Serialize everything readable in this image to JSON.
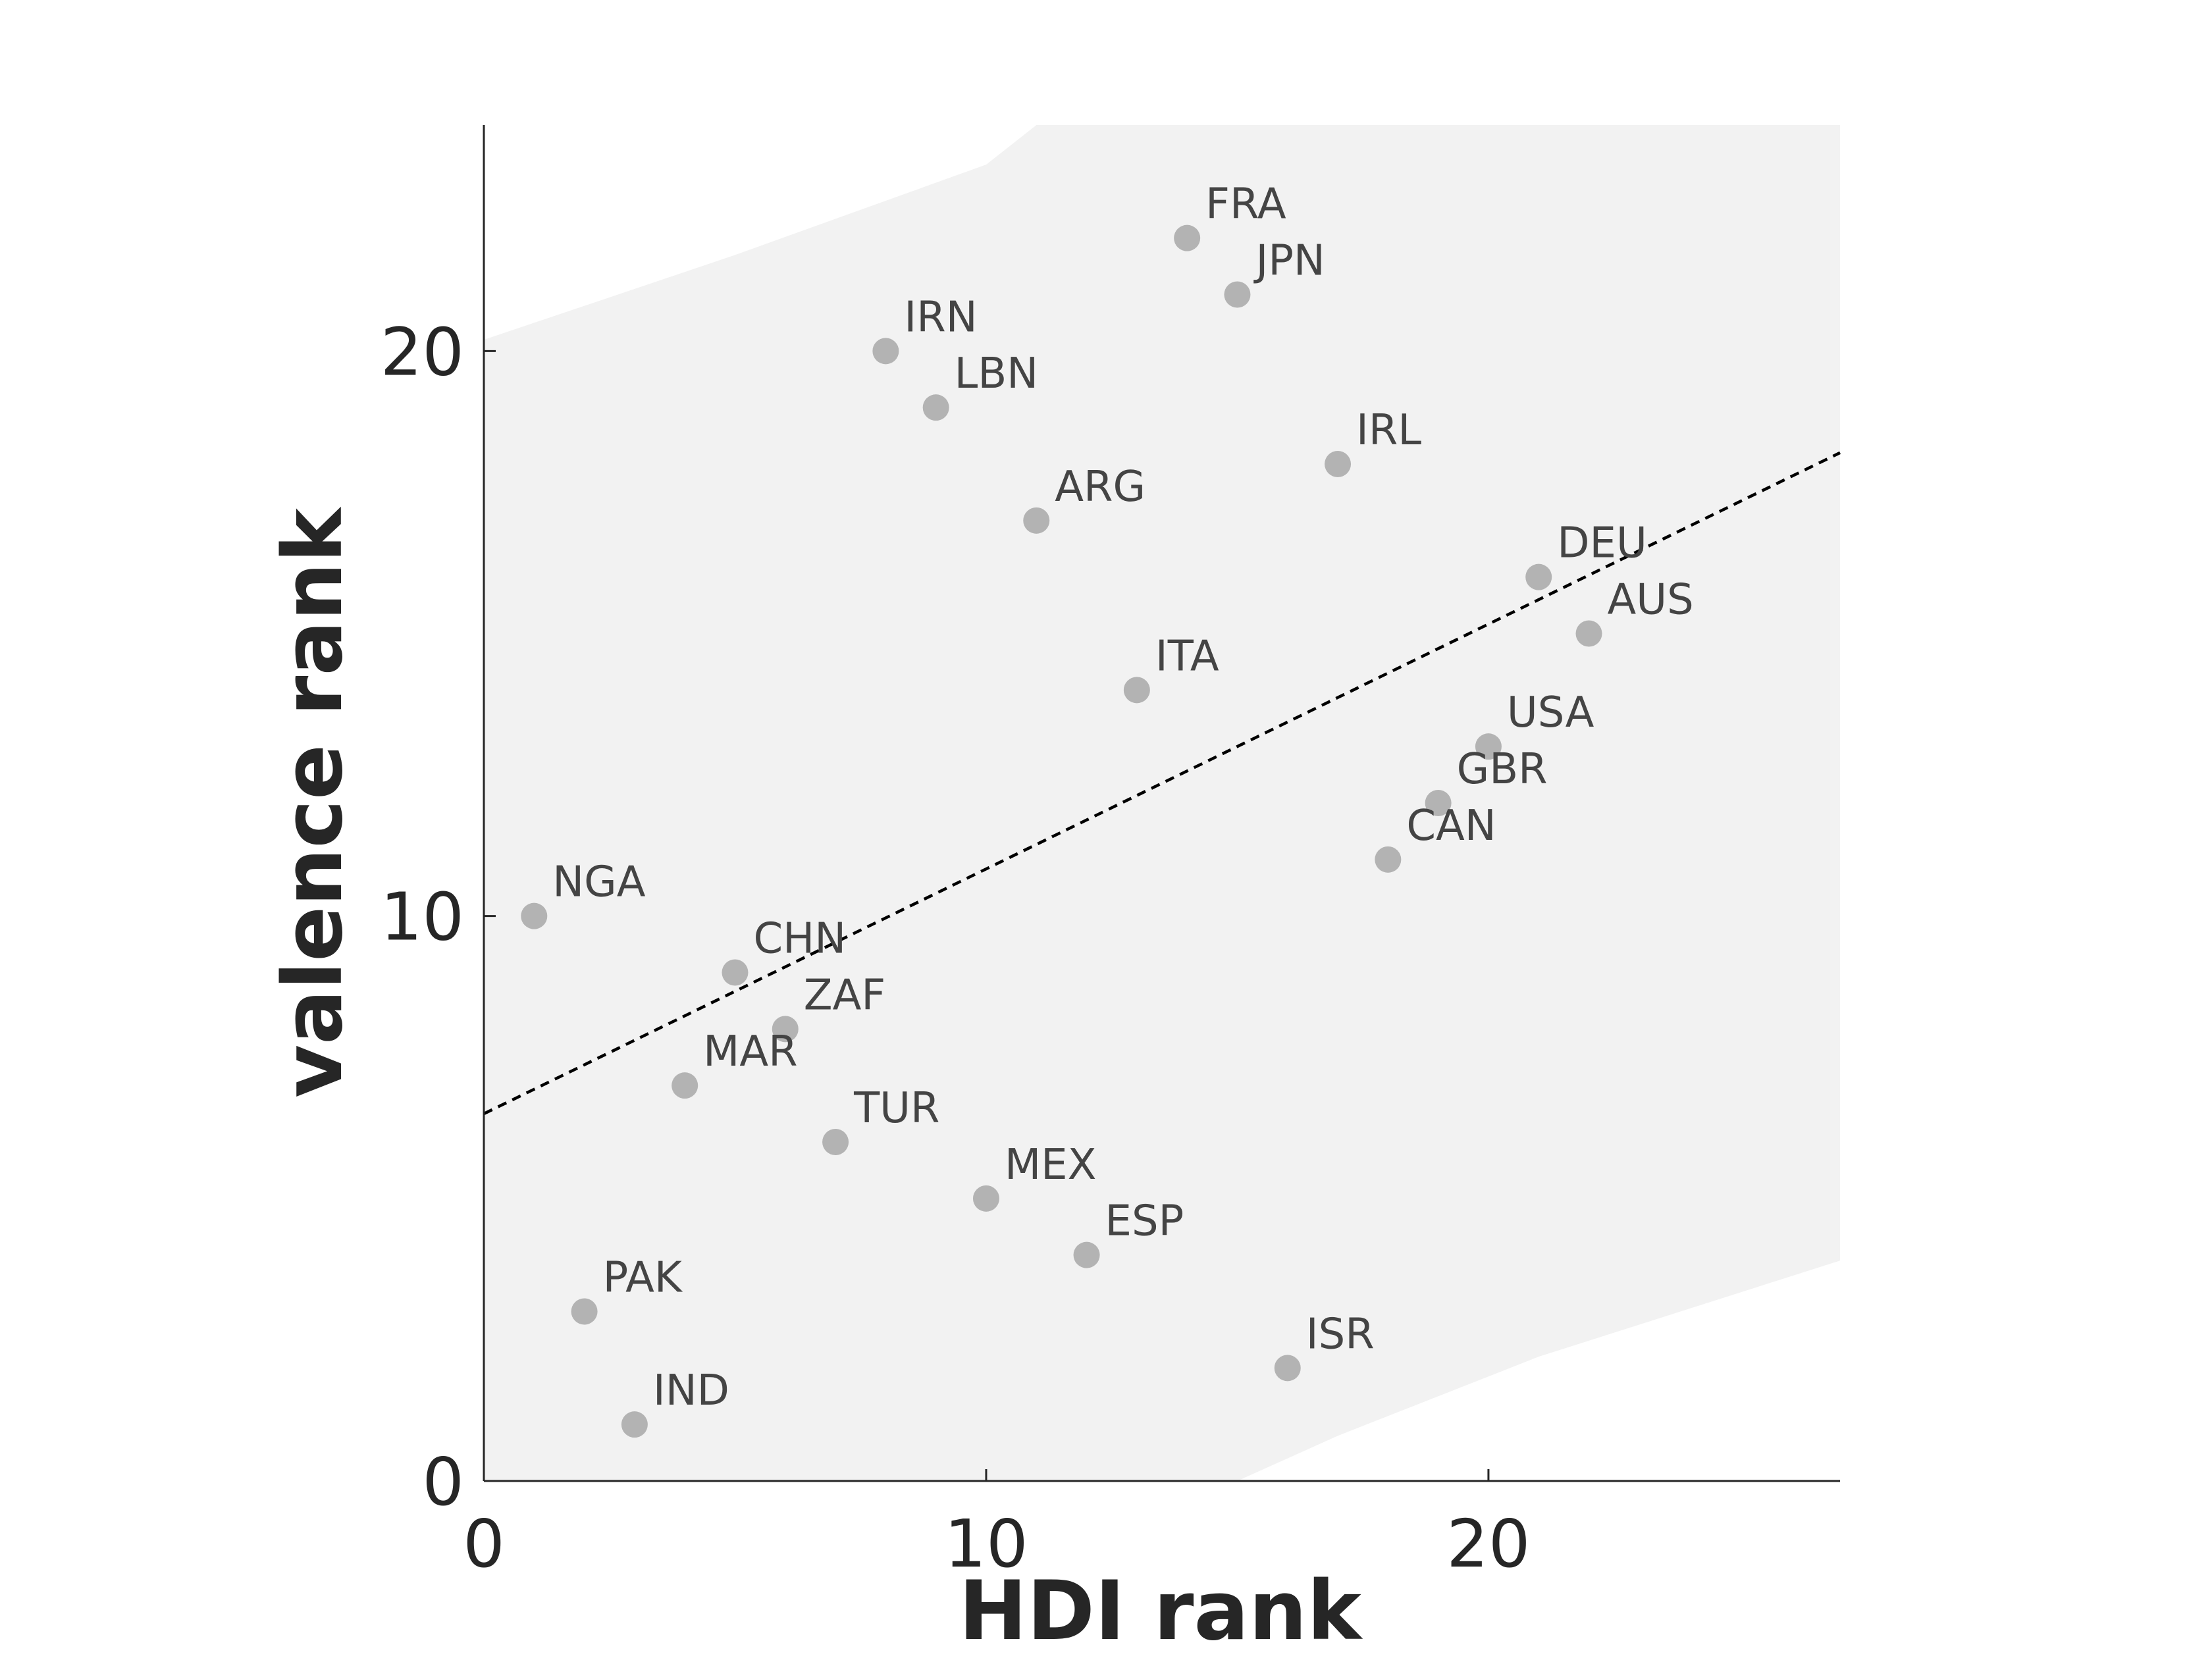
{
  "chart_data": {
    "type": "scatter",
    "title": "",
    "xlabel": "HDI rank",
    "ylabel": "valence rank",
    "xlim": [
      0,
      27
    ],
    "ylim": [
      0,
      24
    ],
    "xticks": [
      0,
      10,
      20
    ],
    "yticks": [
      0,
      10,
      20
    ],
    "grid": false,
    "points": [
      {
        "label": "NGA",
        "x": 1,
        "y": 10
      },
      {
        "label": "PAK",
        "x": 2,
        "y": 3
      },
      {
        "label": "IND",
        "x": 3,
        "y": 1
      },
      {
        "label": "MAR",
        "x": 4,
        "y": 7
      },
      {
        "label": "CHN",
        "x": 5,
        "y": 9
      },
      {
        "label": "ZAF",
        "x": 6,
        "y": 8
      },
      {
        "label": "TUR",
        "x": 7,
        "y": 6
      },
      {
        "label": "IRN",
        "x": 8,
        "y": 20
      },
      {
        "label": "LBN",
        "x": 9,
        "y": 19
      },
      {
        "label": "MEX",
        "x": 10,
        "y": 5
      },
      {
        "label": "ARG",
        "x": 11,
        "y": 17
      },
      {
        "label": "ESP",
        "x": 12,
        "y": 4
      },
      {
        "label": "ITA",
        "x": 13,
        "y": 14
      },
      {
        "label": "FRA",
        "x": 14,
        "y": 22
      },
      {
        "label": "JPN",
        "x": 15,
        "y": 21
      },
      {
        "label": "ISR",
        "x": 16,
        "y": 2
      },
      {
        "label": "IRL",
        "x": 17,
        "y": 18
      },
      {
        "label": "CAN",
        "x": 18,
        "y": 11
      },
      {
        "label": "GBR",
        "x": 19,
        "y": 12
      },
      {
        "label": "USA",
        "x": 20,
        "y": 13
      },
      {
        "label": "DEU",
        "x": 21,
        "y": 16
      },
      {
        "label": "AUS",
        "x": 22,
        "y": 15
      }
    ],
    "fit_line": {
      "style": "dashed",
      "color": "#000000",
      "y_at_x0": 6.5,
      "y_at_x27": 18.2
    },
    "band": {
      "color": "#f2f2f2",
      "upper": [
        [
          0,
          20.2
        ],
        [
          5,
          21.7
        ],
        [
          10,
          23.3
        ],
        [
          11,
          24
        ],
        [
          27,
          24
        ]
      ],
      "lower": [
        [
          0,
          0
        ],
        [
          15,
          0
        ],
        [
          17,
          0.8
        ],
        [
          21,
          2.2
        ],
        [
          27,
          3.9
        ]
      ]
    },
    "colors": {
      "point": "#b3b3b3",
      "axis": "#262626",
      "label": "#444444"
    }
  }
}
